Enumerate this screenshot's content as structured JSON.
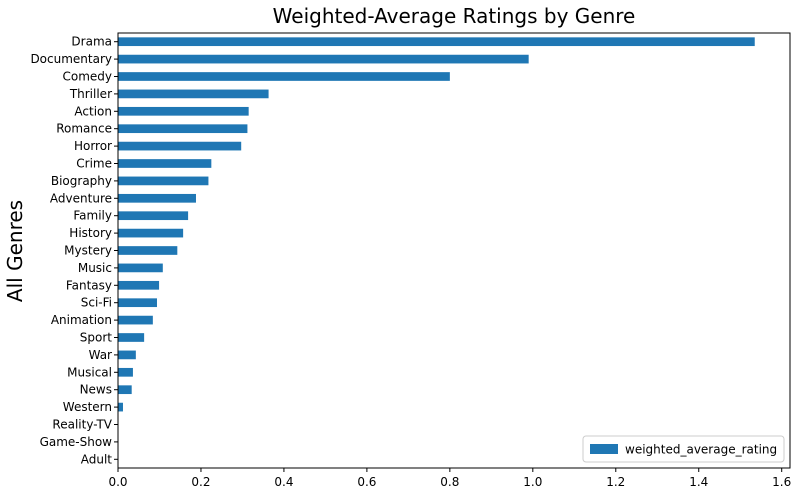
{
  "chart_data": {
    "type": "bar",
    "orientation": "horizontal",
    "title": "Weighted-Average Ratings by Genre",
    "xlabel": "",
    "ylabel": "All Genres",
    "xlim": [
      0,
      1.62
    ],
    "xticks": [
      0.0,
      0.2,
      0.4,
      0.6,
      0.8,
      1.0,
      1.2,
      1.4,
      1.6
    ],
    "xtick_labels": [
      "0.0",
      "0.2",
      "0.4",
      "0.6",
      "0.8",
      "1.0",
      "1.2",
      "1.4",
      "1.6"
    ],
    "grid": false,
    "legend_position": "bottom-right",
    "categories": [
      "Drama",
      "Documentary",
      "Comedy",
      "Thriller",
      "Action",
      "Romance",
      "Horror",
      "Crime",
      "Biography",
      "Adventure",
      "Family",
      "History",
      "Mystery",
      "Music",
      "Fantasy",
      "Sci-Fi",
      "Animation",
      "Sport",
      "War",
      "Musical",
      "News",
      "Western",
      "Reality-TV",
      "Game-Show",
      "Adult"
    ],
    "series": [
      {
        "name": "weighted_average_rating",
        "color": "#1f77b4",
        "values": [
          1.535,
          0.99,
          0.8,
          0.363,
          0.315,
          0.312,
          0.297,
          0.225,
          0.218,
          0.188,
          0.169,
          0.157,
          0.143,
          0.108,
          0.099,
          0.094,
          0.084,
          0.063,
          0.043,
          0.036,
          0.033,
          0.012,
          0.001,
          0.0,
          0.0
        ]
      }
    ]
  }
}
